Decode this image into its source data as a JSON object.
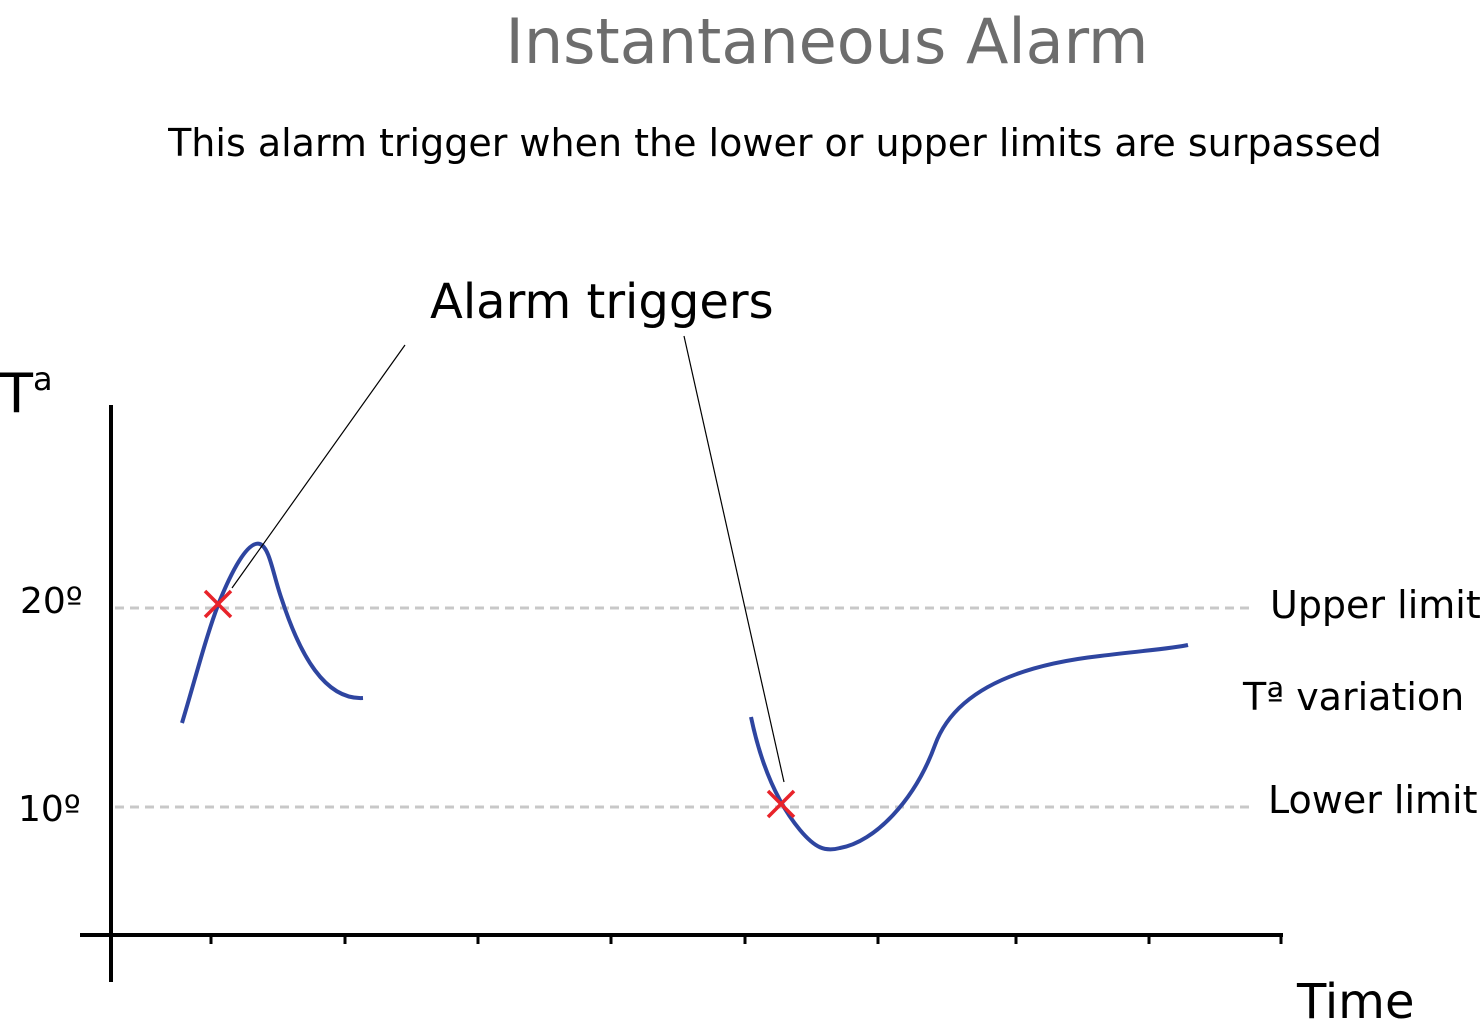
{
  "title": "Instantaneous Alarm",
  "subtitle": "This alarm trigger when the lower or upper limits are surpassed",
  "annotation": "Alarm triggers",
  "y_axis_label": {
    "base": "T",
    "sup": "a"
  },
  "x_axis_label": "Time",
  "y_ticks": [
    "20º",
    "10º"
  ],
  "upper_limit_label": "Upper limit",
  "lower_limit_label": "Lower limit",
  "series_label": "Tª variation",
  "colors": {
    "title": "#6d6d6d",
    "curve": "#2e45a0",
    "marker": "#e8232a",
    "limit_line": "#c8c8c8"
  }
}
